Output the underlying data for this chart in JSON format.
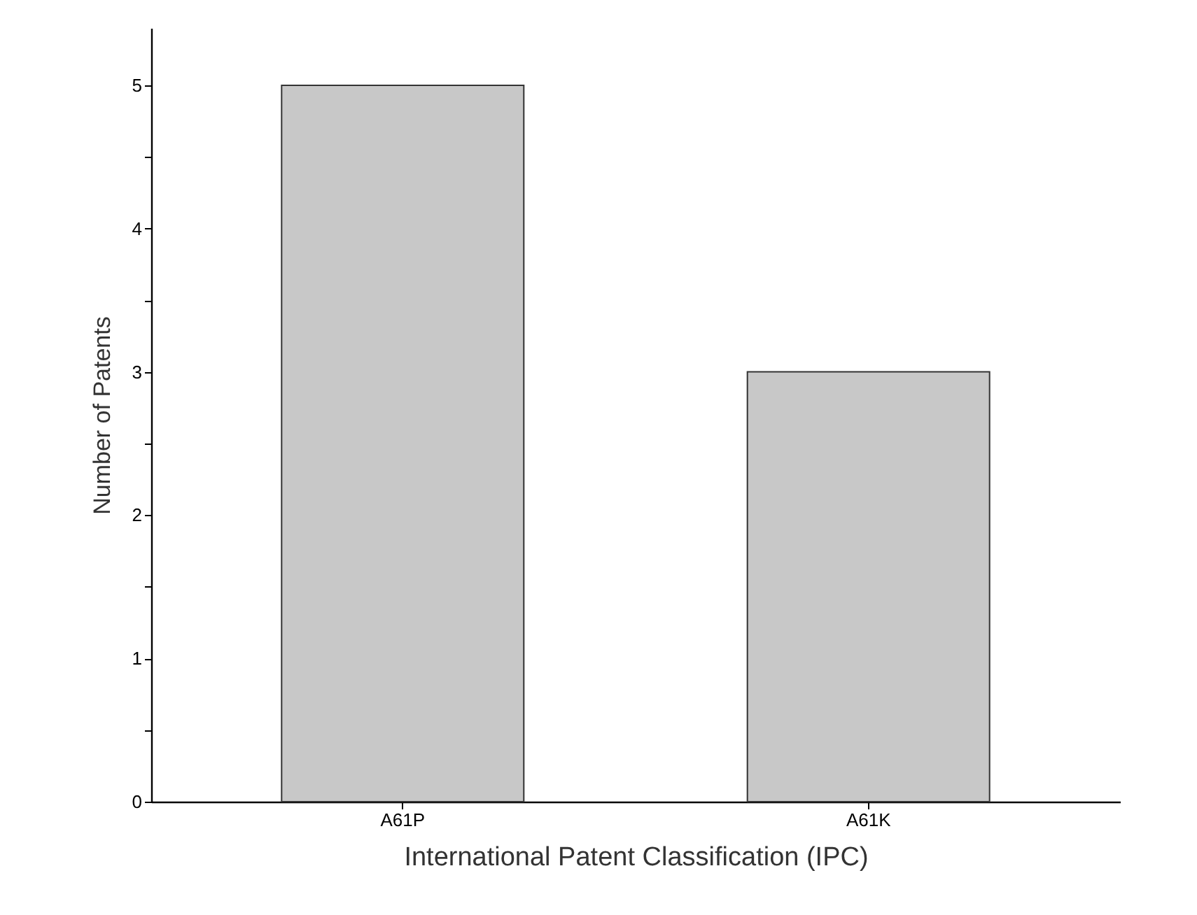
{
  "chart_data": {
    "type": "bar",
    "xlabel": "International Patent Classification (IPC)",
    "ylabel": "Number of Patents",
    "categories": [
      "A61P",
      "A61K"
    ],
    "values": [
      5,
      3
    ],
    "color": "#c8c8c8",
    "ylim": [
      0,
      5.4
    ],
    "yticks": [
      0,
      {
        "value": 0.5,
        "label": null
      },
      1,
      {
        "value": 1.5,
        "label": null
      },
      2,
      {
        "value": 2.5,
        "label": null
      },
      3,
      {
        "value": 3.5,
        "label": null
      },
      4,
      {
        "value": 4.5,
        "label": null
      },
      5
    ],
    "grid": false
  }
}
